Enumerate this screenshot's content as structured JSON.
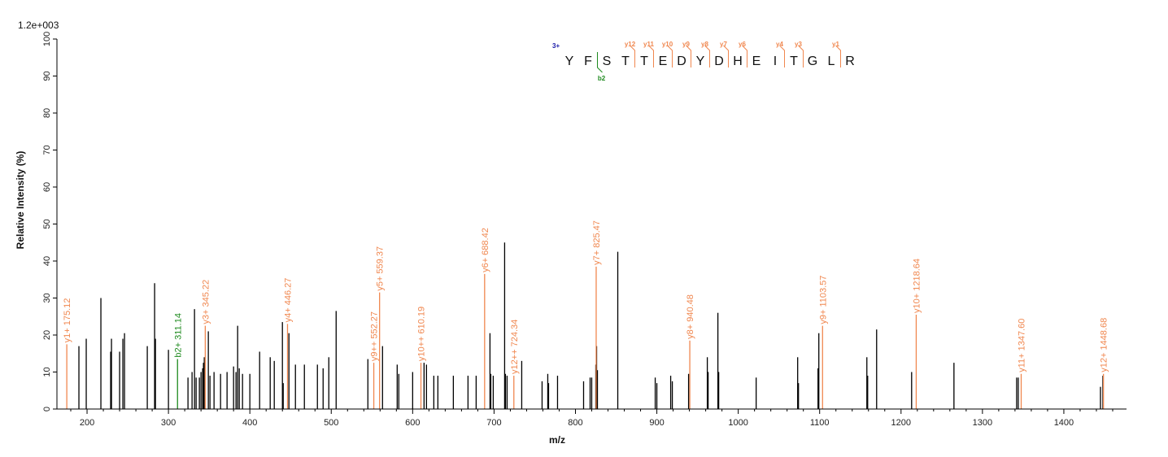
{
  "chart_data": {
    "type": "bar",
    "scale_label": "1.2e+003",
    "xlabel": "m/z",
    "ylabel": "Relative   Intensity (%)",
    "xlim": [
      163,
      1477
    ],
    "ylim": [
      0,
      100
    ],
    "x_ticks": [
      200,
      300,
      400,
      500,
      600,
      700,
      800,
      900,
      1000,
      1100,
      1200,
      1300,
      1400
    ],
    "y_ticks": [
      0,
      10,
      20,
      30,
      40,
      50,
      60,
      70,
      80,
      90,
      100
    ],
    "colors": {
      "unassigned": "#000000",
      "y_ion": "#f0874f",
      "b_ion": "#1e8a1e",
      "charge": "#1a1aa8"
    },
    "unassigned_peaks": [
      [
        190,
        17
      ],
      [
        199,
        19
      ],
      [
        217,
        30
      ],
      [
        229,
        15.5
      ],
      [
        230,
        19
      ],
      [
        240,
        15.5
      ],
      [
        244,
        19
      ],
      [
        246,
        20.5
      ],
      [
        274,
        17
      ],
      [
        283,
        34
      ],
      [
        284,
        19
      ],
      [
        300,
        16
      ],
      [
        324,
        8.5
      ],
      [
        329,
        10
      ],
      [
        332,
        27
      ],
      [
        334,
        8.5
      ],
      [
        338,
        8.5
      ],
      [
        340,
        10
      ],
      [
        342,
        11
      ],
      [
        343,
        12.5
      ],
      [
        344,
        14
      ],
      [
        349,
        21
      ],
      [
        351,
        9
      ],
      [
        356,
        10
      ],
      [
        364,
        9.5
      ],
      [
        372,
        10
      ],
      [
        380,
        11.5
      ],
      [
        383,
        10
      ],
      [
        385,
        22.5
      ],
      [
        387,
        11
      ],
      [
        391,
        9.5
      ],
      [
        400,
        9.5
      ],
      [
        412,
        15.5
      ],
      [
        425,
        14
      ],
      [
        430,
        13
      ],
      [
        440,
        23.5
      ],
      [
        441,
        7
      ],
      [
        448,
        20.5
      ],
      [
        456,
        12
      ],
      [
        467,
        12
      ],
      [
        483,
        12
      ],
      [
        490,
        11
      ],
      [
        497,
        14
      ],
      [
        506,
        26.5
      ],
      [
        545,
        13.5
      ],
      [
        563,
        17
      ],
      [
        581,
        12
      ],
      [
        583,
        9.5
      ],
      [
        600,
        10
      ],
      [
        614,
        12.5
      ],
      [
        617,
        12
      ],
      [
        626,
        9
      ],
      [
        631,
        9
      ],
      [
        650,
        9
      ],
      [
        668,
        9
      ],
      [
        678,
        9
      ],
      [
        695,
        20.5
      ],
      [
        696,
        9.5
      ],
      [
        699,
        9
      ],
      [
        713,
        45
      ],
      [
        714,
        9.5
      ],
      [
        716,
        9
      ],
      [
        734,
        13
      ],
      [
        759,
        7.5
      ],
      [
        766,
        9.5
      ],
      [
        767,
        7
      ],
      [
        778,
        9
      ],
      [
        810,
        7.5
      ],
      [
        818,
        8.5
      ],
      [
        820,
        8.5
      ],
      [
        825,
        12
      ],
      [
        826,
        17
      ],
      [
        827,
        10.5
      ],
      [
        852,
        42.5
      ],
      [
        898,
        8.5
      ],
      [
        900,
        7
      ],
      [
        917,
        9
      ],
      [
        919,
        7.5
      ],
      [
        939,
        9.5
      ],
      [
        962,
        14
      ],
      [
        963,
        10
      ],
      [
        975,
        26
      ],
      [
        976,
        10
      ],
      [
        1022,
        8.5
      ],
      [
        1073,
        14
      ],
      [
        1074,
        7
      ],
      [
        1098,
        11
      ],
      [
        1099,
        20.5
      ],
      [
        1158,
        14
      ],
      [
        1159,
        9
      ],
      [
        1170,
        21.5
      ],
      [
        1213,
        10
      ],
      [
        1265,
        12.5
      ],
      [
        1342,
        8.5
      ],
      [
        1344,
        8.5
      ],
      [
        1445,
        6
      ],
      [
        1448,
        9
      ]
    ],
    "labeled_peaks": [
      {
        "mz": 175.12,
        "intensity": 17.5,
        "label": "y1+ 175.12",
        "ion": "y"
      },
      {
        "mz": 311.14,
        "intensity": 13.5,
        "label": "b2+ 311.14",
        "ion": "b"
      },
      {
        "mz": 345.22,
        "intensity": 22.5,
        "label": "y3+ 345.22",
        "ion": "y"
      },
      {
        "mz": 446.27,
        "intensity": 23.0,
        "label": "y4+ 446.27",
        "ion": "y"
      },
      {
        "mz": 552.27,
        "intensity": 12.5,
        "label": "y9++ 552.27",
        "ion": "y"
      },
      {
        "mz": 559.37,
        "intensity": 31.5,
        "label": "y5+ 559.37",
        "ion": "y"
      },
      {
        "mz": 610.19,
        "intensity": 12.5,
        "label": "y10++ 610.19",
        "ion": "y"
      },
      {
        "mz": 688.42,
        "intensity": 36.5,
        "label": "y6+ 688.42",
        "ion": "y"
      },
      {
        "mz": 724.34,
        "intensity": 9.0,
        "label": "y12++ 724.34",
        "ion": "y"
      },
      {
        "mz": 825.47,
        "intensity": 38.5,
        "label": "y7+ 825.47",
        "ion": "y"
      },
      {
        "mz": 940.48,
        "intensity": 18.5,
        "label": "y8+ 940.48",
        "ion": "y"
      },
      {
        "mz": 1103.57,
        "intensity": 22.5,
        "label": "y9+ 1103.57",
        "ion": "y"
      },
      {
        "mz": 1218.64,
        "intensity": 25.5,
        "label": "y10+ 1218.64",
        "ion": "y"
      },
      {
        "mz": 1347.6,
        "intensity": 9.5,
        "label": "y11+ 1347.60",
        "ion": "y"
      },
      {
        "mz": 1448.68,
        "intensity": 9.5,
        "label": "y12+ 1448.68",
        "ion": "y"
      }
    ],
    "sequence": {
      "charge": "3+",
      "letters": [
        "Y",
        "F",
        "S",
        "T",
        "T",
        "E",
        "D",
        "Y",
        "D",
        "H",
        "E",
        "I",
        "T",
        "G",
        "L",
        "R"
      ],
      "y_ions": [
        {
          "label": "y12",
          "after": 3
        },
        {
          "label": "y11",
          "after": 4
        },
        {
          "label": "y10",
          "after": 5
        },
        {
          "label": "y9",
          "after": 6
        },
        {
          "label": "y8",
          "after": 7
        },
        {
          "label": "y7",
          "after": 8
        },
        {
          "label": "y6",
          "after": 9
        },
        {
          "label": "y4",
          "after": 11
        },
        {
          "label": "y3",
          "after": 12
        },
        {
          "label": "y1",
          "after": 14
        }
      ],
      "b_ions": [
        {
          "label": "b2",
          "after": 1
        }
      ]
    }
  }
}
